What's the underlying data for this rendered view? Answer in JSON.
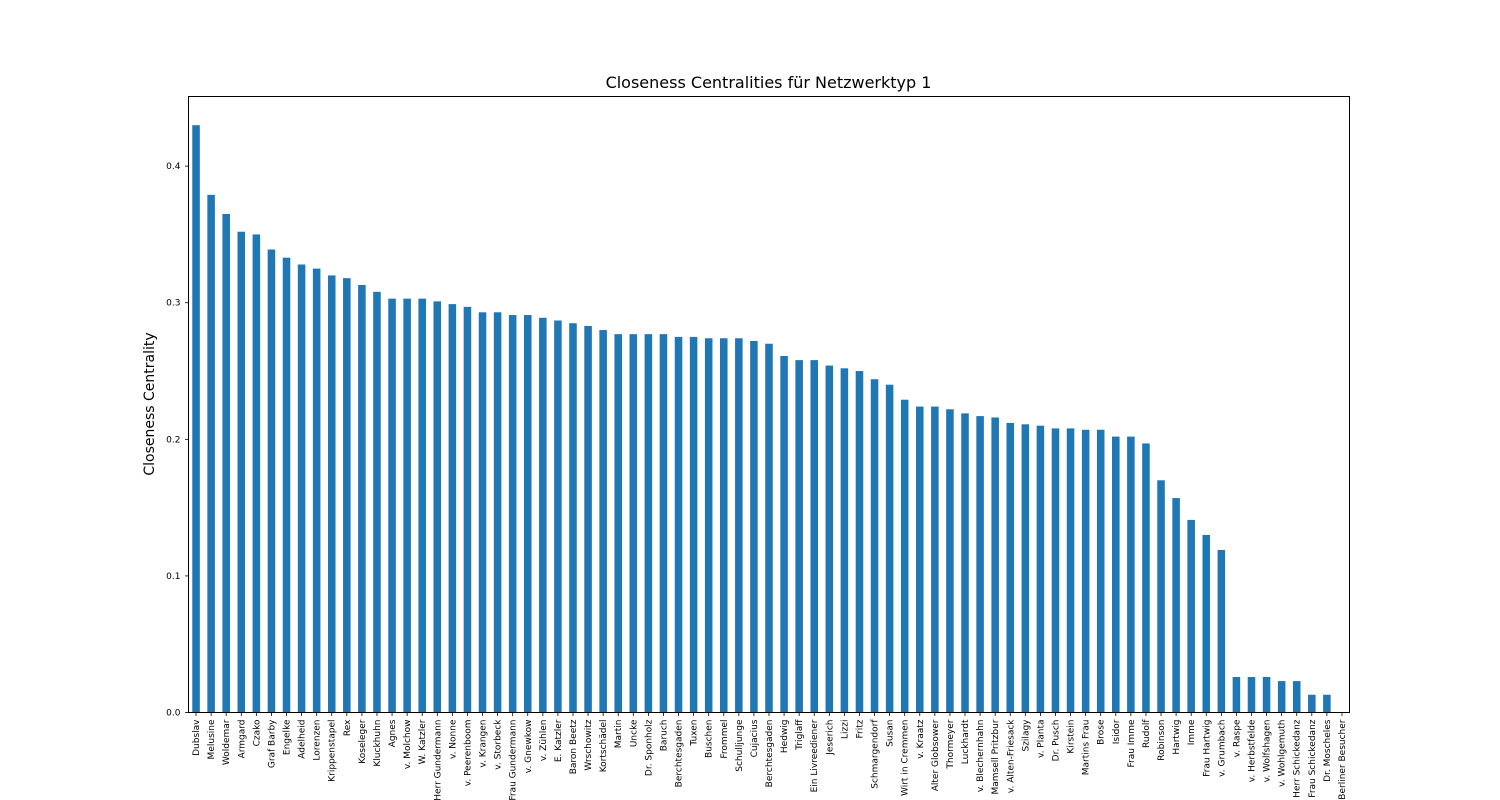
{
  "chart_data": {
    "type": "bar",
    "title": "Closeness Centralities für Netzwerktyp 1",
    "xlabel": "",
    "ylabel": "Closeness Centrality",
    "ylim": [
      0,
      0.451
    ],
    "yticks": [
      "0.0",
      "0.1",
      "0.2",
      "0.3",
      "0.4"
    ],
    "color": "#1f77b4",
    "categories": [
      "Dubslav",
      "Melusine",
      "Woldemar",
      "Armgard",
      "Czako",
      "Graf Barby",
      "Engelke",
      "Adelheid",
      "Lorenzen",
      "Krippenstapel",
      "Rex",
      "Koseleger",
      "Kluckhuhn",
      "Agnes",
      "v. Molchow",
      "W. Katzler",
      "Herr Gundermann",
      "v. Nonne",
      "v. Peerenboom",
      "v. Krangen",
      "v. Storbeck",
      "Frau Gundermann",
      "v. Gnewkow",
      "v. Zühlen",
      "E. Katzler",
      "Baron Beetz",
      "Wrschowitz",
      "Kortschädel",
      "Martin",
      "Uncke",
      "Dr. Sponholz",
      "Baruch",
      "Berchtesgaden",
      "Tuxen",
      "Buschen",
      "Frommel",
      "Schulljunge",
      "Cujacius",
      "Berchtesgaden",
      "Hedwig",
      "Triglaff",
      "Ein Livreediener",
      "Jeserich",
      "Lizzi",
      "Fritz",
      "Schmargendorf",
      "Susan",
      "Wirt in Cremmen",
      "v. Kraatz",
      "Alter Globsower",
      "Thormeyer",
      "Luckhardt",
      "v. Blechernhahn",
      "Mamsell Pritzbur",
      "v. Alten-Friesack",
      "Szilagy",
      "v. Planta",
      "Dr. Pusch",
      "Kirstein",
      "Martins Frau",
      "Brose",
      "Isidor",
      "Frau Imme",
      "Rudolf",
      "Robinson",
      "Hartwig",
      "Imme",
      "Frau Hartwig",
      "v. Grumbach",
      "v. Raspe",
      "v. Herbstfelde",
      "v. Wolfshagen",
      "v. Wohlgemuth",
      "Herr Schickedanz",
      "Frau Schickedanz",
      "Dr. Moscheles",
      "Berliner Besucher"
    ],
    "values": [
      0.43,
      0.379,
      0.365,
      0.352,
      0.35,
      0.339,
      0.333,
      0.328,
      0.325,
      0.32,
      0.318,
      0.313,
      0.308,
      0.303,
      0.303,
      0.303,
      0.301,
      0.299,
      0.297,
      0.293,
      0.293,
      0.291,
      0.291,
      0.289,
      0.287,
      0.285,
      0.283,
      0.28,
      0.277,
      0.277,
      0.277,
      0.277,
      0.275,
      0.275,
      0.274,
      0.274,
      0.274,
      0.272,
      0.27,
      0.261,
      0.258,
      0.258,
      0.254,
      0.252,
      0.25,
      0.244,
      0.24,
      0.229,
      0.224,
      0.224,
      0.222,
      0.219,
      0.217,
      0.216,
      0.212,
      0.211,
      0.21,
      0.208,
      0.208,
      0.207,
      0.207,
      0.202,
      0.202,
      0.197,
      0.17,
      0.157,
      0.141,
      0.13,
      0.119,
      0.026,
      0.026,
      0.026,
      0.023,
      0.023,
      0.013,
      0.013,
      0.0
    ]
  }
}
